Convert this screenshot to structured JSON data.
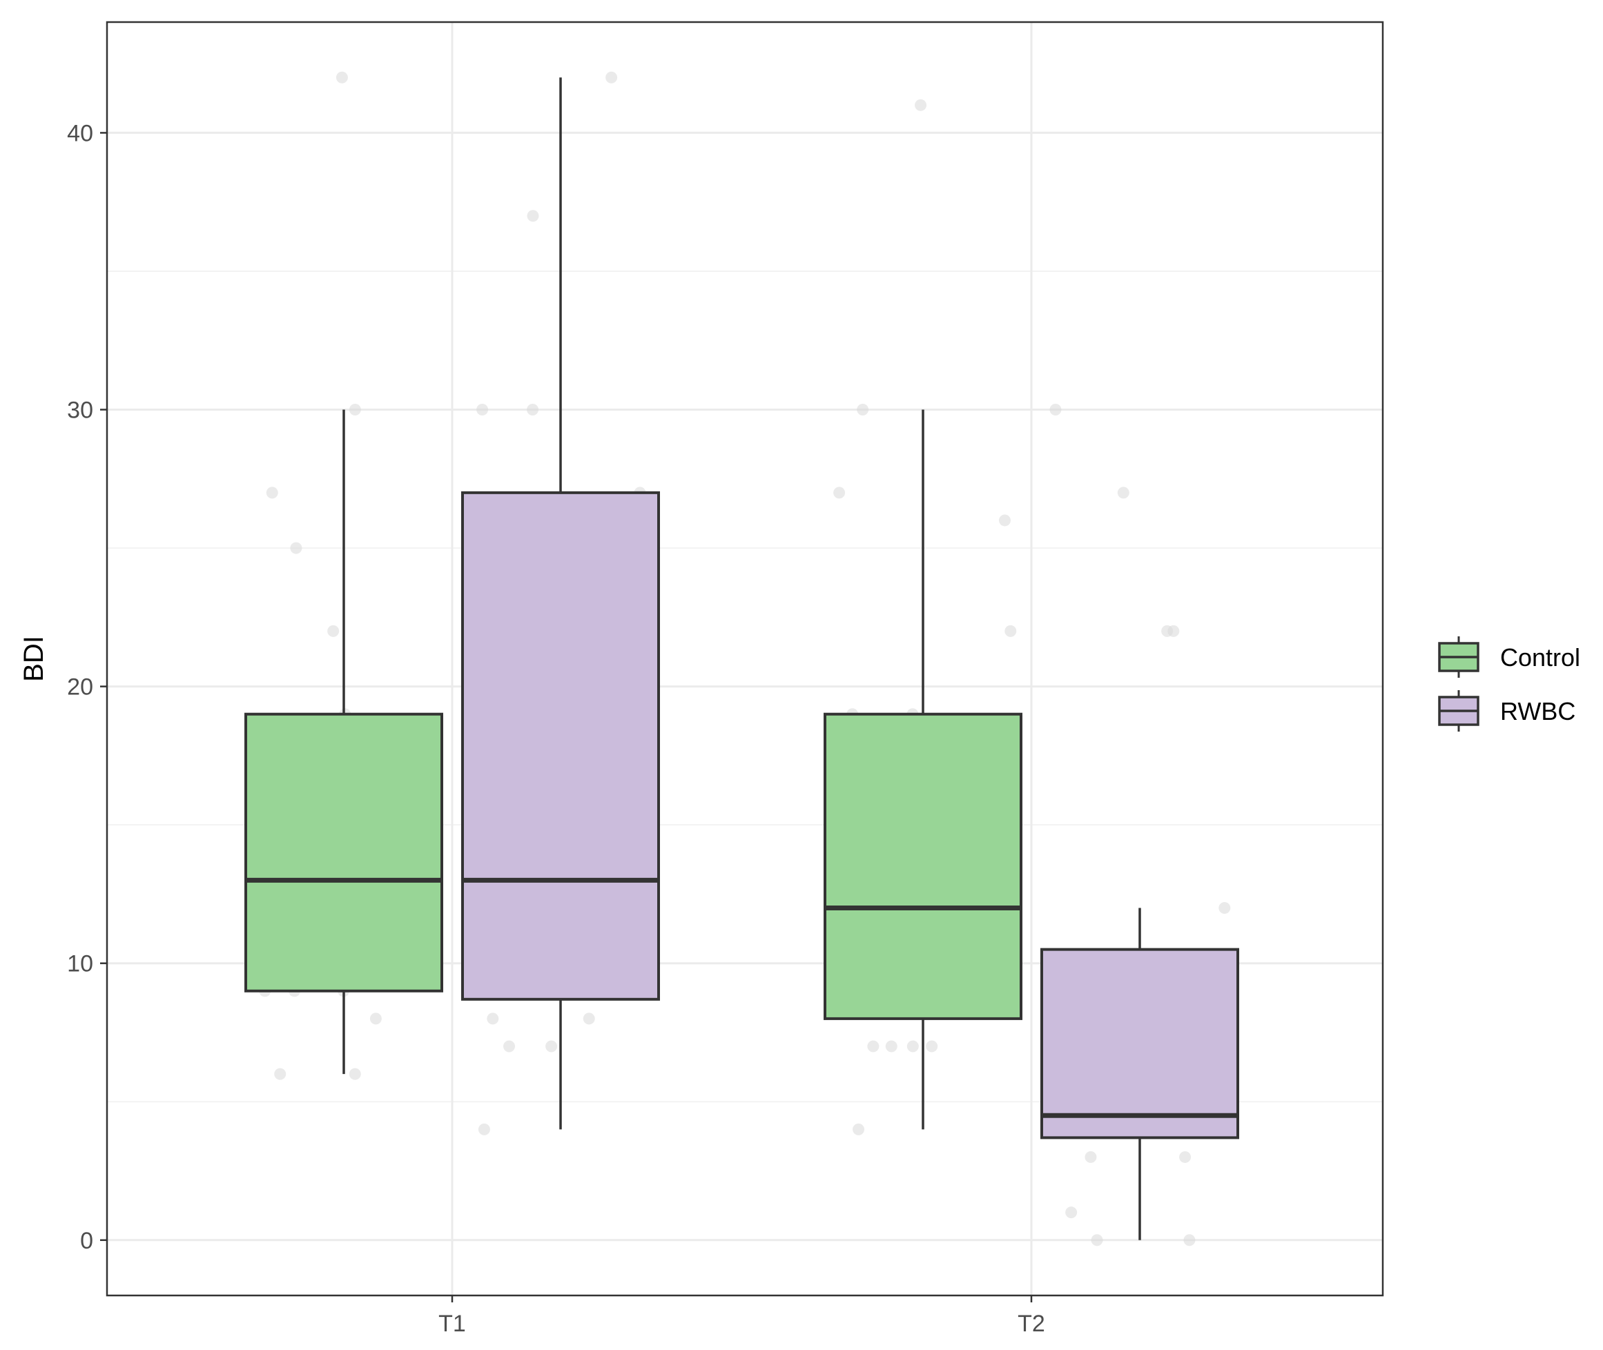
{
  "chart_data": {
    "type": "boxplot",
    "title": "",
    "xlabel": "",
    "ylabel": "BDI",
    "ylim": [
      -2,
      44
    ],
    "y_ticks": [
      0,
      10,
      20,
      30,
      40
    ],
    "y_tick_labels": [
      "0",
      "10",
      "20",
      "30",
      "40"
    ],
    "categories": [
      "T1",
      "T2"
    ],
    "grid": true,
    "legend": {
      "position": "right",
      "entries": [
        "Control",
        "RWBC"
      ]
    },
    "colors": {
      "Control": "#98d596",
      "RWBC": "#cbbcdc",
      "outline": "#333333",
      "points": "#d9d9d9"
    },
    "series": [
      {
        "name": "Control",
        "boxes": [
          {
            "category": "T1",
            "whisker_low": 6,
            "q1": 9,
            "median": 13,
            "q3": 19,
            "whisker_high": 30,
            "points": [
              42,
              30,
              27,
              25,
              22,
              19,
              18,
              16,
              15,
              13,
              12,
              12,
              11,
              9,
              9,
              9,
              8,
              6,
              6
            ]
          },
          {
            "category": "T2",
            "whisker_low": 4,
            "q1": 8,
            "median": 12,
            "q3": 19,
            "whisker_high": 30,
            "points": [
              41,
              30,
              27,
              26,
              22,
              19,
              19,
              17,
              13,
              13,
              10,
              10,
              10,
              9,
              9,
              7,
              7,
              7,
              7,
              4
            ]
          }
        ]
      },
      {
        "name": "RWBC",
        "boxes": [
          {
            "category": "T1",
            "whisker_low": 4,
            "q1": 8.7,
            "median": 13,
            "q3": 27,
            "whisker_high": 42,
            "points": [
              42,
              37,
              30,
              30,
              27,
              22,
              22,
              22,
              13,
              12,
              10,
              9,
              8,
              8,
              7,
              7,
              4
            ]
          },
          {
            "category": "T2",
            "whisker_low": 0,
            "q1": 3.7,
            "median": 4.5,
            "q3": 10.5,
            "whisker_high": 12,
            "points": [
              30,
              27,
              22,
              22,
              12,
              10,
              7,
              7,
              6,
              5,
              4,
              4,
              4,
              3,
              3,
              1,
              0,
              0
            ]
          }
        ]
      }
    ]
  }
}
